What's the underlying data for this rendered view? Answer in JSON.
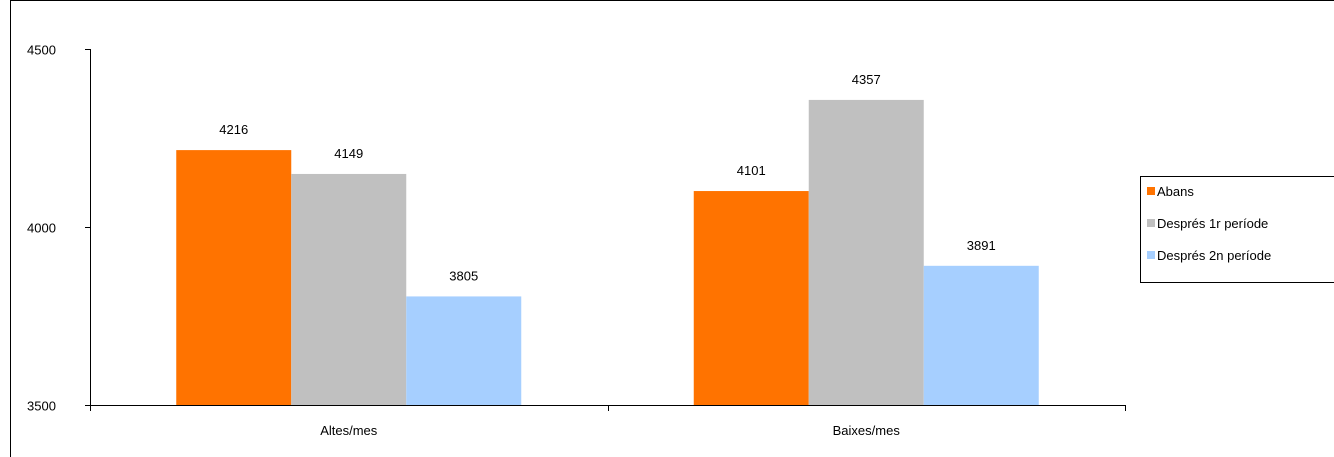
{
  "chart_data": {
    "type": "bar",
    "categories": [
      "Altes/mes",
      "Baixes/mes"
    ],
    "series": [
      {
        "name": "Abans",
        "values": [
          4216,
          4101
        ],
        "color": "#ff7300"
      },
      {
        "name": "Després 1r període",
        "values": [
          4149,
          4357
        ],
        "color": "#c0c0c0"
      },
      {
        "name": "Després 2n període",
        "values": [
          3805,
          3891
        ],
        "color": "#a6cfff"
      }
    ],
    "y_ticks": [
      "3500",
      "4000",
      "4500"
    ],
    "ylim": [
      3500,
      4500
    ],
    "grid": false,
    "legend_position": "right",
    "data_labels": true
  }
}
